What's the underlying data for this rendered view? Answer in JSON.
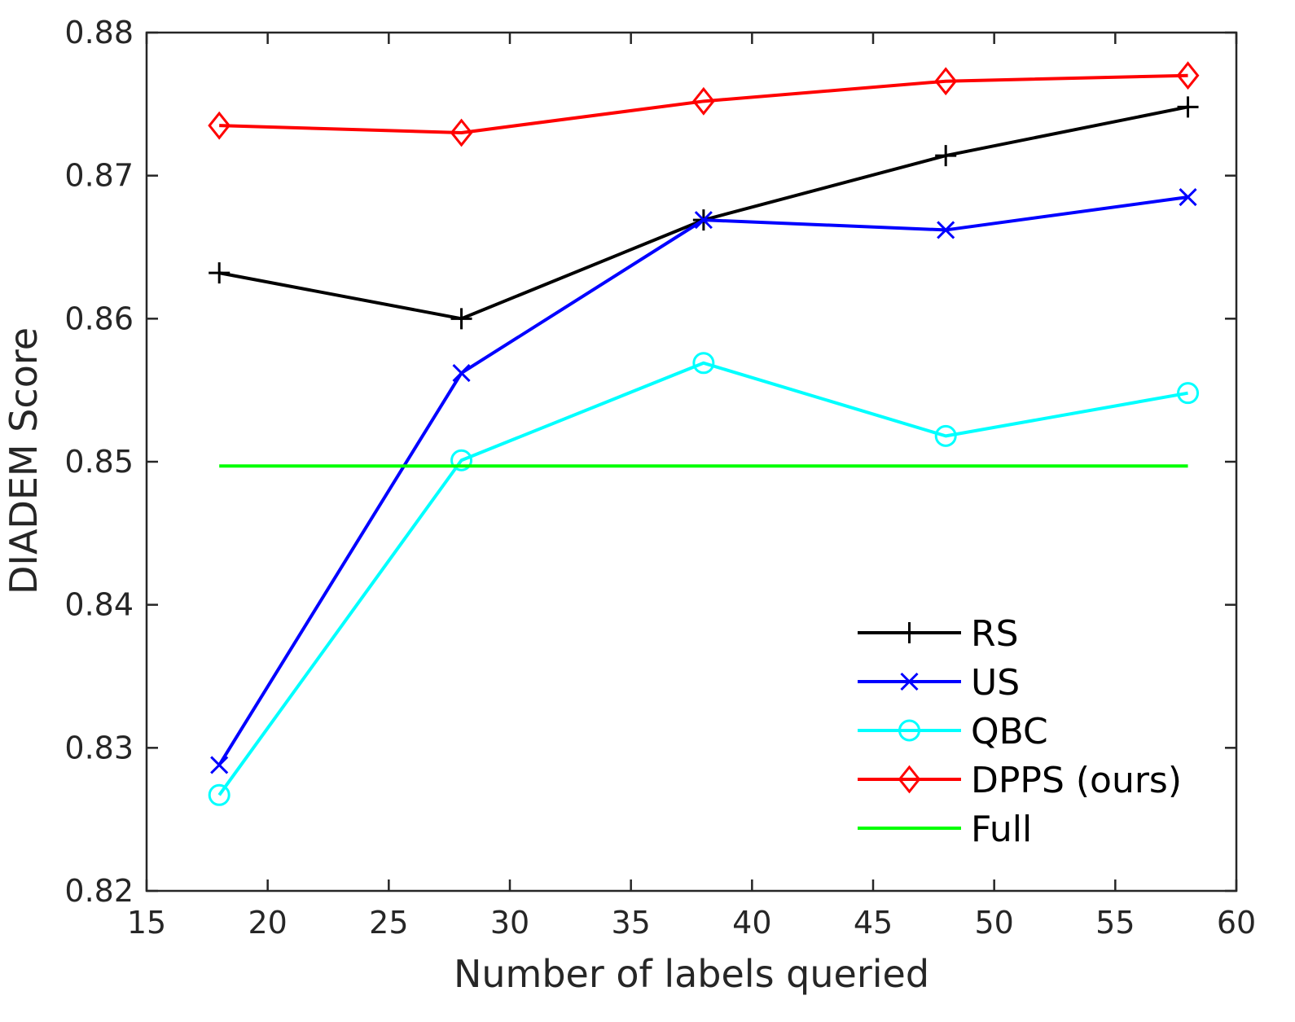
{
  "chart_data": {
    "type": "line",
    "title": "",
    "xlabel": "Number of labels queried",
    "ylabel": "DIADEM Score",
    "xlim": [
      15,
      60
    ],
    "ylim": [
      0.82,
      0.88
    ],
    "xticks": [
      "15",
      "20",
      "25",
      "30",
      "35",
      "40",
      "45",
      "50",
      "55",
      "60"
    ],
    "yticks": [
      "0.82",
      "0.83",
      "0.84",
      "0.85",
      "0.86",
      "0.87",
      "0.88"
    ],
    "grid": false,
    "legend_position": "bottom-right",
    "x": [
      18,
      28,
      38,
      48,
      58
    ],
    "series": [
      {
        "name": "RS",
        "color": "#000000",
        "marker": "plus",
        "values": [
          0.8632,
          0.86,
          0.8669,
          0.8714,
          0.8748
        ]
      },
      {
        "name": "US",
        "color": "#0000ff",
        "marker": "x",
        "values": [
          0.8288,
          0.8562,
          0.8669,
          0.8662,
          0.8685
        ]
      },
      {
        "name": "QBC",
        "color": "#00ffff",
        "marker": "circle",
        "values": [
          0.8267,
          0.8501,
          0.8569,
          0.8518,
          0.8548
        ]
      },
      {
        "name": "DPPS (ours)",
        "color": "#ff0000",
        "marker": "diamond",
        "values": [
          0.8735,
          0.873,
          0.8752,
          0.8766,
          0.877
        ]
      },
      {
        "name": "Full",
        "color": "#00ff00",
        "marker": "none",
        "values": [
          0.8497,
          0.8497,
          0.8497,
          0.8497,
          0.8497
        ]
      }
    ]
  }
}
